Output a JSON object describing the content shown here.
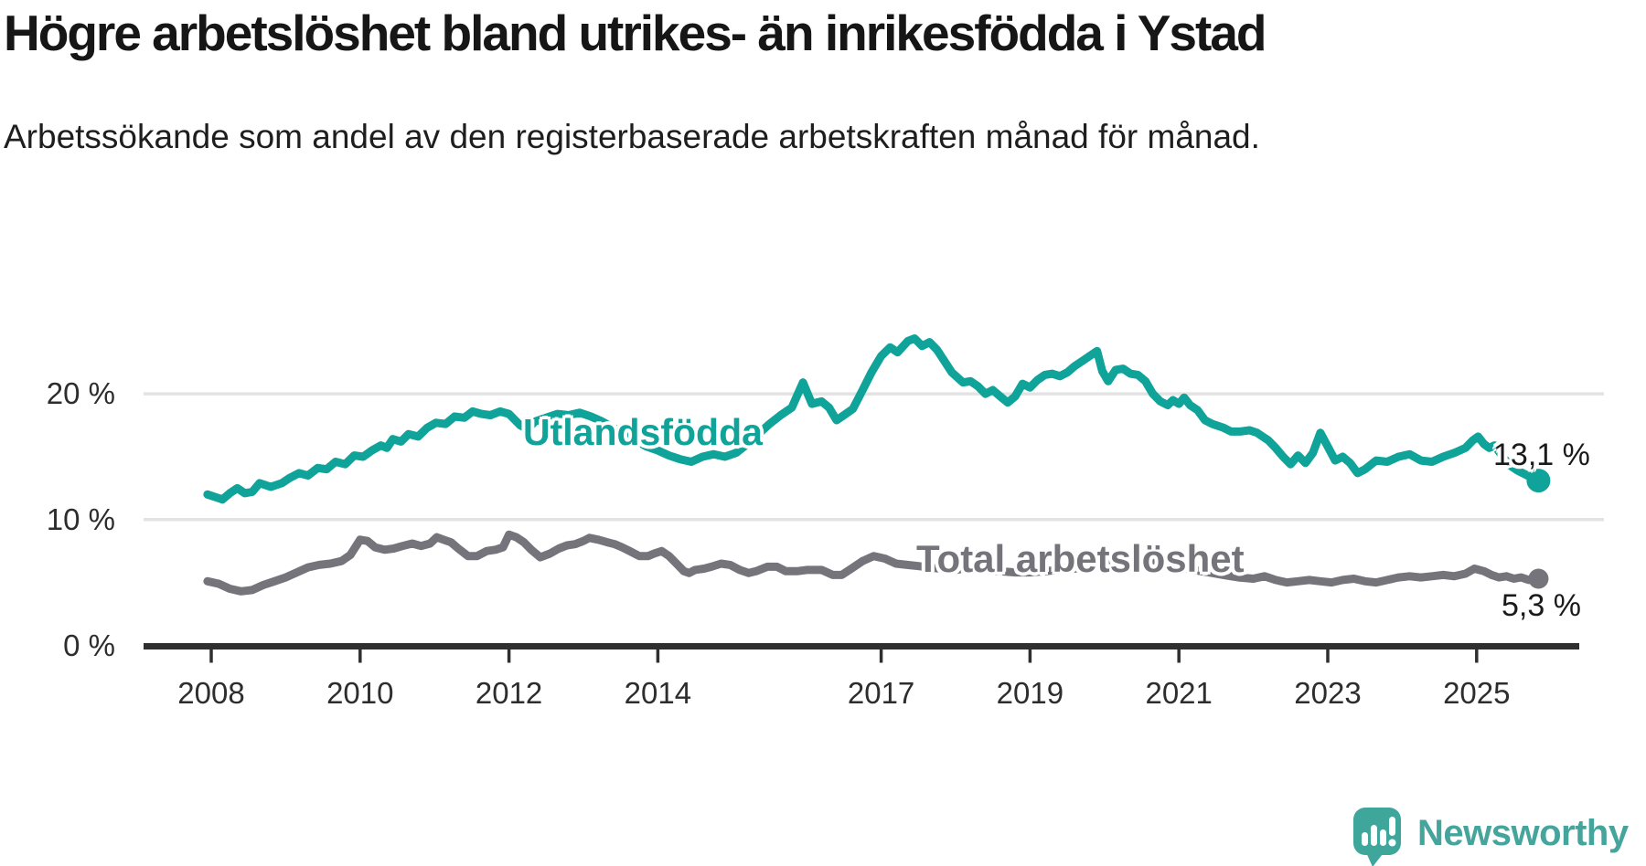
{
  "title": "Högre arbetslöshet bland utrikes- än inrikesfödda i Ystad",
  "subtitle": "Arbetssökande som andel av den registerbaserade arbetskraften månad för månad.",
  "logo": {
    "text": "Newsworthy",
    "color": "#45a59c",
    "icon_color": "#3fa69c"
  },
  "axis_colors": {
    "gridline": "#e3e3e3",
    "axis": "#2f2f2f",
    "tick": "#2f2f2f"
  },
  "chart_data": {
    "type": "line",
    "title": "Högre arbetslöshet bland utrikes- än inrikesfödda i Ystad",
    "xlabel": "",
    "ylabel": "Arbetssökande som andel av den registerbaserade arbetskraften",
    "xlim": [
      2007.9,
      2026.3
    ],
    "ylim": [
      0,
      26
    ],
    "grid": "horizontal",
    "legend_position": "inline-labels",
    "x_ticks": [
      {
        "year": 2008,
        "label": "2008"
      },
      {
        "year": 2010,
        "label": "2010"
      },
      {
        "year": 2012,
        "label": "2012"
      },
      {
        "year": 2014,
        "label": "2014"
      },
      {
        "year": 2017,
        "label": "2017"
      },
      {
        "year": 2019,
        "label": "2019"
      },
      {
        "year": 2021,
        "label": "2021"
      },
      {
        "year": 2023,
        "label": "2023"
      },
      {
        "year": 2025,
        "label": "2025"
      }
    ],
    "y_ticks": [
      {
        "value": 0,
        "label": "0 %"
      },
      {
        "value": 10,
        "label": "10 %"
      },
      {
        "value": 20,
        "label": "20 %"
      }
    ],
    "series": [
      {
        "name": "Utlandsfödda",
        "color": "#0fa399",
        "line_width": 9,
        "end_dot_radius": 13,
        "end_value_label": "13,1 %",
        "latest_value": 13.1,
        "points": [
          [
            2007.95,
            12.0
          ],
          [
            2008.05,
            11.8
          ],
          [
            2008.15,
            11.6
          ],
          [
            2008.25,
            12.1
          ],
          [
            2008.35,
            12.5
          ],
          [
            2008.45,
            12.1
          ],
          [
            2008.55,
            12.2
          ],
          [
            2008.65,
            12.9
          ],
          [
            2008.8,
            12.6
          ],
          [
            2008.95,
            12.9
          ],
          [
            2009.05,
            13.3
          ],
          [
            2009.18,
            13.7
          ],
          [
            2009.3,
            13.5
          ],
          [
            2009.43,
            14.1
          ],
          [
            2009.55,
            14.0
          ],
          [
            2009.67,
            14.6
          ],
          [
            2009.8,
            14.4
          ],
          [
            2009.92,
            15.1
          ],
          [
            2010.04,
            15.0
          ],
          [
            2010.16,
            15.5
          ],
          [
            2010.28,
            15.9
          ],
          [
            2010.36,
            15.7
          ],
          [
            2010.44,
            16.4
          ],
          [
            2010.55,
            16.2
          ],
          [
            2010.65,
            16.8
          ],
          [
            2010.78,
            16.6
          ],
          [
            2010.9,
            17.3
          ],
          [
            2011.02,
            17.7
          ],
          [
            2011.15,
            17.6
          ],
          [
            2011.27,
            18.2
          ],
          [
            2011.4,
            18.1
          ],
          [
            2011.51,
            18.6
          ],
          [
            2011.63,
            18.4
          ],
          [
            2011.75,
            18.3
          ],
          [
            2011.88,
            18.6
          ],
          [
            2012.0,
            18.4
          ],
          [
            2012.15,
            17.5
          ],
          [
            2012.25,
            17.2
          ],
          [
            2012.35,
            17.8
          ],
          [
            2012.5,
            18.1
          ],
          [
            2012.65,
            18.4
          ],
          [
            2012.8,
            18.3
          ],
          [
            2012.95,
            18.5
          ],
          [
            2013.1,
            18.2
          ],
          [
            2013.25,
            17.8
          ],
          [
            2013.4,
            17.3
          ],
          [
            2013.55,
            16.8
          ],
          [
            2013.7,
            16.3
          ],
          [
            2013.85,
            15.8
          ],
          [
            2014.0,
            15.5
          ],
          [
            2014.15,
            15.1
          ],
          [
            2014.3,
            14.8
          ],
          [
            2014.45,
            14.6
          ],
          [
            2014.6,
            15.0
          ],
          [
            2014.75,
            15.2
          ],
          [
            2014.9,
            15.0
          ],
          [
            2015.05,
            15.3
          ],
          [
            2015.2,
            16.0
          ],
          [
            2015.35,
            16.8
          ],
          [
            2015.5,
            17.6
          ],
          [
            2015.65,
            18.3
          ],
          [
            2015.8,
            18.9
          ],
          [
            2015.95,
            20.9
          ],
          [
            2016.07,
            19.2
          ],
          [
            2016.2,
            19.4
          ],
          [
            2016.3,
            18.9
          ],
          [
            2016.4,
            17.9
          ],
          [
            2016.5,
            18.3
          ],
          [
            2016.62,
            18.8
          ],
          [
            2016.75,
            20.3
          ],
          [
            2016.87,
            21.7
          ],
          [
            2017.0,
            23.0
          ],
          [
            2017.12,
            23.7
          ],
          [
            2017.22,
            23.3
          ],
          [
            2017.36,
            24.2
          ],
          [
            2017.45,
            24.4
          ],
          [
            2017.55,
            23.8
          ],
          [
            2017.65,
            24.1
          ],
          [
            2017.75,
            23.5
          ],
          [
            2017.85,
            22.6
          ],
          [
            2017.95,
            21.7
          ],
          [
            2018.1,
            20.9
          ],
          [
            2018.2,
            21.0
          ],
          [
            2018.3,
            20.6
          ],
          [
            2018.4,
            20.0
          ],
          [
            2018.5,
            20.3
          ],
          [
            2018.6,
            19.8
          ],
          [
            2018.7,
            19.3
          ],
          [
            2018.8,
            19.8
          ],
          [
            2018.9,
            20.8
          ],
          [
            2019.0,
            20.5
          ],
          [
            2019.1,
            21.1
          ],
          [
            2019.2,
            21.5
          ],
          [
            2019.3,
            21.6
          ],
          [
            2019.4,
            21.4
          ],
          [
            2019.5,
            21.7
          ],
          [
            2019.6,
            22.2
          ],
          [
            2019.7,
            22.6
          ],
          [
            2019.8,
            23.0
          ],
          [
            2019.9,
            23.4
          ],
          [
            2019.97,
            21.8
          ],
          [
            2020.05,
            21.0
          ],
          [
            2020.15,
            21.9
          ],
          [
            2020.25,
            22.0
          ],
          [
            2020.35,
            21.6
          ],
          [
            2020.45,
            21.5
          ],
          [
            2020.55,
            21.0
          ],
          [
            2020.65,
            20.0
          ],
          [
            2020.75,
            19.4
          ],
          [
            2020.85,
            19.1
          ],
          [
            2020.92,
            19.5
          ],
          [
            2021.0,
            19.2
          ],
          [
            2021.07,
            19.7
          ],
          [
            2021.15,
            19.1
          ],
          [
            2021.25,
            18.7
          ],
          [
            2021.35,
            17.9
          ],
          [
            2021.45,
            17.6
          ],
          [
            2021.6,
            17.3
          ],
          [
            2021.7,
            17.0
          ],
          [
            2021.82,
            17.0
          ],
          [
            2021.95,
            17.1
          ],
          [
            2022.05,
            16.9
          ],
          [
            2022.2,
            16.3
          ],
          [
            2022.3,
            15.7
          ],
          [
            2022.4,
            15.0
          ],
          [
            2022.5,
            14.4
          ],
          [
            2022.6,
            15.1
          ],
          [
            2022.7,
            14.5
          ],
          [
            2022.8,
            15.3
          ],
          [
            2022.9,
            16.9
          ],
          [
            2023.0,
            15.8
          ],
          [
            2023.1,
            14.7
          ],
          [
            2023.2,
            15.0
          ],
          [
            2023.3,
            14.5
          ],
          [
            2023.4,
            13.7
          ],
          [
            2023.5,
            14.0
          ],
          [
            2023.65,
            14.7
          ],
          [
            2023.8,
            14.6
          ],
          [
            2023.95,
            15.0
          ],
          [
            2024.1,
            15.2
          ],
          [
            2024.25,
            14.7
          ],
          [
            2024.4,
            14.6
          ],
          [
            2024.55,
            15.0
          ],
          [
            2024.7,
            15.3
          ],
          [
            2024.85,
            15.7
          ],
          [
            2024.95,
            16.3
          ],
          [
            2025.02,
            16.6
          ],
          [
            2025.1,
            16.0
          ],
          [
            2025.17,
            15.7
          ],
          [
            2025.24,
            15.9
          ],
          [
            2025.35,
            15.0
          ],
          [
            2025.45,
            14.3
          ],
          [
            2025.55,
            13.9
          ],
          [
            2025.65,
            13.6
          ],
          [
            2025.75,
            13.3
          ],
          [
            2025.83,
            13.1
          ]
        ]
      },
      {
        "name": "Total arbetslöshet",
        "color": "#75747b",
        "line_width": 9,
        "end_dot_radius": 11,
        "end_value_label": "5,3 %",
        "latest_value": 5.3,
        "points": [
          [
            2007.95,
            5.1
          ],
          [
            2008.1,
            4.9
          ],
          [
            2008.25,
            4.5
          ],
          [
            2008.4,
            4.3
          ],
          [
            2008.55,
            4.4
          ],
          [
            2008.7,
            4.8
          ],
          [
            2008.85,
            5.1
          ],
          [
            2009.0,
            5.4
          ],
          [
            2009.15,
            5.8
          ],
          [
            2009.3,
            6.2
          ],
          [
            2009.45,
            6.4
          ],
          [
            2009.6,
            6.5
          ],
          [
            2009.75,
            6.7
          ],
          [
            2009.87,
            7.2
          ],
          [
            2010.0,
            8.4
          ],
          [
            2010.1,
            8.3
          ],
          [
            2010.2,
            7.8
          ],
          [
            2010.33,
            7.6
          ],
          [
            2010.45,
            7.7
          ],
          [
            2010.57,
            7.9
          ],
          [
            2010.7,
            8.1
          ],
          [
            2010.82,
            7.9
          ],
          [
            2010.94,
            8.1
          ],
          [
            2011.03,
            8.6
          ],
          [
            2011.12,
            8.4
          ],
          [
            2011.22,
            8.2
          ],
          [
            2011.32,
            7.7
          ],
          [
            2011.45,
            7.1
          ],
          [
            2011.57,
            7.1
          ],
          [
            2011.7,
            7.5
          ],
          [
            2011.82,
            7.6
          ],
          [
            2011.92,
            7.8
          ],
          [
            2012.0,
            8.8
          ],
          [
            2012.1,
            8.6
          ],
          [
            2012.2,
            8.2
          ],
          [
            2012.3,
            7.6
          ],
          [
            2012.42,
            7.0
          ],
          [
            2012.55,
            7.3
          ],
          [
            2012.67,
            7.7
          ],
          [
            2012.78,
            7.95
          ],
          [
            2012.89,
            8.05
          ],
          [
            2013.0,
            8.3
          ],
          [
            2013.08,
            8.55
          ],
          [
            2013.2,
            8.4
          ],
          [
            2013.32,
            8.2
          ],
          [
            2013.42,
            8.05
          ],
          [
            2013.52,
            7.8
          ],
          [
            2013.62,
            7.5
          ],
          [
            2013.75,
            7.1
          ],
          [
            2013.87,
            7.1
          ],
          [
            2013.95,
            7.3
          ],
          [
            2014.05,
            7.5
          ],
          [
            2014.15,
            7.1
          ],
          [
            2014.25,
            6.5
          ],
          [
            2014.35,
            5.9
          ],
          [
            2014.42,
            5.75
          ],
          [
            2014.5,
            6.0
          ],
          [
            2014.62,
            6.1
          ],
          [
            2014.72,
            6.25
          ],
          [
            2014.85,
            6.5
          ],
          [
            2014.97,
            6.4
          ],
          [
            2015.1,
            6.0
          ],
          [
            2015.22,
            5.75
          ],
          [
            2015.32,
            5.9
          ],
          [
            2015.47,
            6.25
          ],
          [
            2015.6,
            6.25
          ],
          [
            2015.72,
            5.9
          ],
          [
            2015.87,
            5.9
          ],
          [
            2016.0,
            6.0
          ],
          [
            2016.2,
            6.0
          ],
          [
            2016.35,
            5.6
          ],
          [
            2016.47,
            5.6
          ],
          [
            2016.6,
            6.1
          ],
          [
            2016.75,
            6.7
          ],
          [
            2016.9,
            7.1
          ],
          [
            2017.05,
            6.9
          ],
          [
            2017.2,
            6.5
          ],
          [
            2017.35,
            6.4
          ],
          [
            2017.5,
            6.3
          ],
          [
            2017.65,
            6.2
          ],
          [
            2017.8,
            6.1
          ],
          [
            2018.0,
            6.0
          ],
          [
            2018.2,
            6.2
          ],
          [
            2018.4,
            6.0
          ],
          [
            2018.6,
            5.9
          ],
          [
            2018.8,
            5.8
          ],
          [
            2019.0,
            5.8
          ],
          [
            2019.2,
            5.9
          ],
          [
            2019.4,
            6.0
          ],
          [
            2019.6,
            6.1
          ],
          [
            2019.8,
            6.2
          ],
          [
            2020.0,
            6.4
          ],
          [
            2020.2,
            6.9
          ],
          [
            2020.35,
            7.1
          ],
          [
            2020.5,
            7.0
          ],
          [
            2020.65,
            6.8
          ],
          [
            2020.8,
            6.5
          ],
          [
            2021.0,
            6.2
          ],
          [
            2021.2,
            6.0
          ],
          [
            2021.4,
            5.8
          ],
          [
            2021.6,
            5.6
          ],
          [
            2021.8,
            5.4
          ],
          [
            2022.0,
            5.3
          ],
          [
            2022.15,
            5.5
          ],
          [
            2022.3,
            5.2
          ],
          [
            2022.45,
            5.0
          ],
          [
            2022.6,
            5.1
          ],
          [
            2022.75,
            5.2
          ],
          [
            2022.9,
            5.1
          ],
          [
            2023.05,
            5.0
          ],
          [
            2023.2,
            5.2
          ],
          [
            2023.35,
            5.3
          ],
          [
            2023.5,
            5.1
          ],
          [
            2023.65,
            5.0
          ],
          [
            2023.8,
            5.2
          ],
          [
            2023.95,
            5.4
          ],
          [
            2024.1,
            5.5
          ],
          [
            2024.25,
            5.4
          ],
          [
            2024.4,
            5.5
          ],
          [
            2024.55,
            5.6
          ],
          [
            2024.7,
            5.5
          ],
          [
            2024.85,
            5.7
          ],
          [
            2024.97,
            6.1
          ],
          [
            2025.1,
            5.9
          ],
          [
            2025.2,
            5.6
          ],
          [
            2025.3,
            5.4
          ],
          [
            2025.4,
            5.5
          ],
          [
            2025.5,
            5.3
          ],
          [
            2025.6,
            5.4
          ],
          [
            2025.7,
            5.2
          ],
          [
            2025.83,
            5.3
          ]
        ]
      }
    ]
  }
}
